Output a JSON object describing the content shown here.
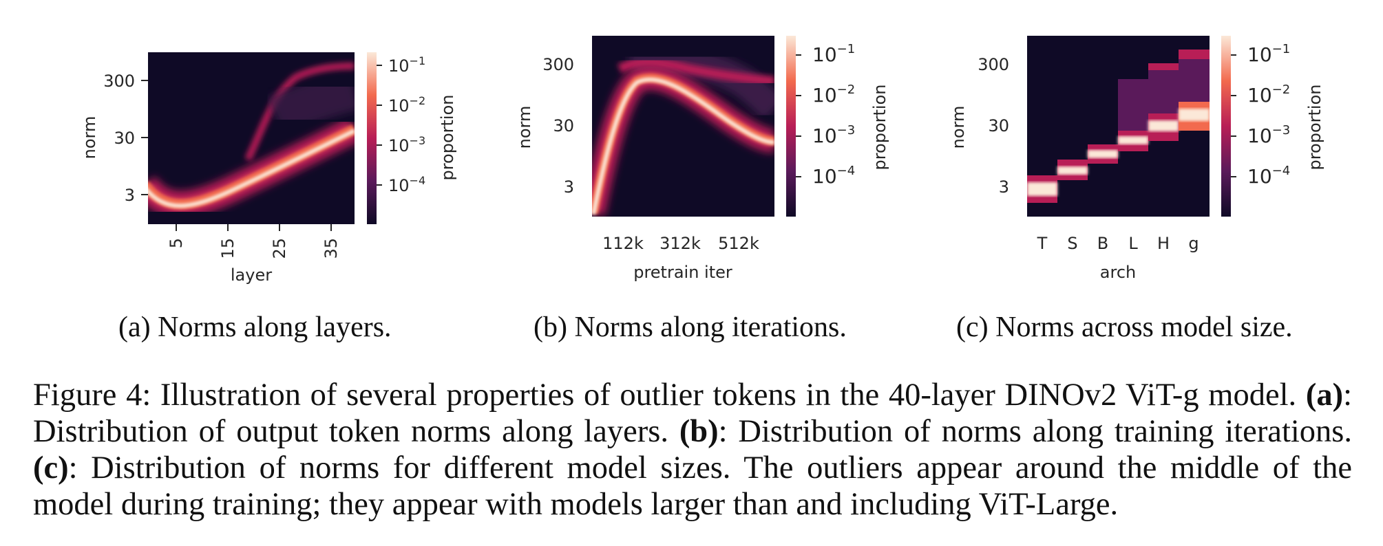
{
  "chart_data": [
    {
      "type": "heatmap",
      "xlabel": "layer",
      "ylabel": "norm",
      "x_ticks": [
        "5",
        "15",
        "25",
        "35"
      ],
      "y_ticks": [
        "300",
        "30",
        "3"
      ],
      "y_scale": "log",
      "colorbar_label": "proportion",
      "colorbar_ticks": [
        "10",
        "10",
        "10",
        "10"
      ],
      "colorbar_exponents": [
        "−1",
        "−2",
        "−3",
        "−4"
      ],
      "colorbar_scale": "log"
    },
    {
      "type": "heatmap",
      "xlabel": "pretrain iter",
      "ylabel": "norm",
      "x_ticks": [
        "112k",
        "312k",
        "512k"
      ],
      "y_ticks": [
        "300",
        "30",
        "3"
      ],
      "y_scale": "log",
      "colorbar_label": "proportion",
      "colorbar_ticks": [
        "10",
        "10",
        "10",
        "10"
      ],
      "colorbar_exponents": [
        "−1",
        "−2",
        "−3",
        "−4"
      ],
      "colorbar_scale": "log"
    },
    {
      "type": "heatmap",
      "xlabel": "arch",
      "ylabel": "norm",
      "x_ticks": [
        "T",
        "S",
        "B",
        "L",
        "H",
        "g"
      ],
      "y_ticks": [
        "300",
        "30",
        "3"
      ],
      "y_scale": "log",
      "colorbar_label": "proportion",
      "colorbar_ticks": [
        "10",
        "10",
        "10",
        "10"
      ],
      "colorbar_exponents": [
        "−1",
        "−2",
        "−3",
        "−4"
      ],
      "colorbar_scale": "log"
    }
  ],
  "subcaptions": {
    "a": "(a) Norms along layers.",
    "b": "(b) Norms along iterations.",
    "c": "(c) Norms across model size."
  },
  "caption": {
    "lead": "Figure 4: Illustration of several properties of outlier tokens in the 40-layer DINOv2 ViT-g model.",
    "a_label": "(a)",
    "a_text": ": Distribution of output token norms along layers.",
    "b_label": "(b)",
    "b_text": ": Distribution of norms along training iterations.",
    "c_label": "(c)",
    "c_text": ": Distribution of norms for different model sizes. The outliers appear around the middle of the model during training; they appear with models larger than and including ViT-Large."
  },
  "colors": {
    "background": "#0f0a26",
    "low": "#3a1a47",
    "mid": "#b81e56",
    "high": "#f26a4e",
    "peak": "#fbe8d8"
  }
}
